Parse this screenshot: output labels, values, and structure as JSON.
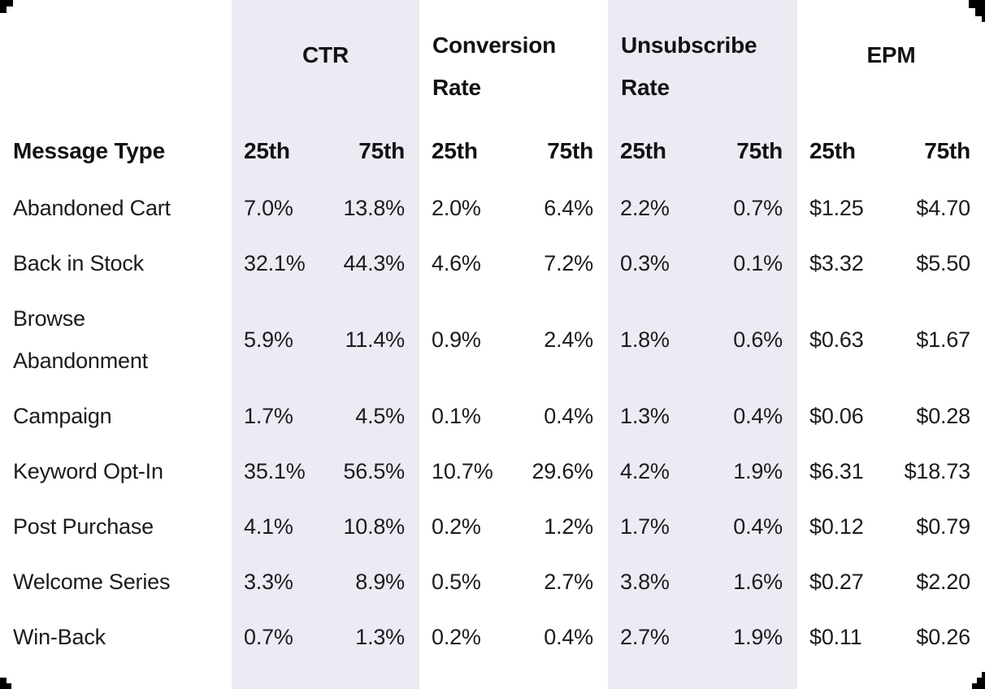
{
  "table": {
    "row_header_label": "Message Type",
    "percentile_labels": {
      "p25": "25th",
      "p75": "75th"
    },
    "groups": [
      {
        "label": "CTR",
        "shaded": true
      },
      {
        "label": "Conversion Rate",
        "shaded": false
      },
      {
        "label": "Unsubscribe Rate",
        "shaded": true
      },
      {
        "label": "EPM",
        "shaded": false
      }
    ],
    "rows": [
      {
        "label": "Abandoned Cart",
        "values": [
          "7.0%",
          "13.8%",
          "2.0%",
          "6.4%",
          "2.2%",
          "0.7%",
          "$1.25",
          "$4.70"
        ]
      },
      {
        "label": "Back in Stock",
        "values": [
          "32.1%",
          "44.3%",
          "4.6%",
          "7.2%",
          "0.3%",
          "0.1%",
          "$3.32",
          "$5.50"
        ]
      },
      {
        "label": "Browse Abandonment",
        "values": [
          "5.9%",
          "11.4%",
          "0.9%",
          "2.4%",
          "1.8%",
          "0.6%",
          "$0.63",
          "$1.67"
        ]
      },
      {
        "label": "Campaign",
        "values": [
          "1.7%",
          "4.5%",
          "0.1%",
          "0.4%",
          "1.3%",
          "0.4%",
          "$0.06",
          "$0.28"
        ]
      },
      {
        "label": "Keyword Opt-In",
        "values": [
          "35.1%",
          "56.5%",
          "10.7%",
          "29.6%",
          "4.2%",
          "1.9%",
          "$6.31",
          "$18.73"
        ]
      },
      {
        "label": "Post Purchase",
        "values": [
          "4.1%",
          "10.8%",
          "0.2%",
          "1.2%",
          "1.7%",
          "0.4%",
          "$0.12",
          "$0.79"
        ]
      },
      {
        "label": "Welcome Series",
        "values": [
          "3.3%",
          "8.9%",
          "0.5%",
          "2.7%",
          "3.8%",
          "1.6%",
          "$0.27",
          "$2.20"
        ]
      },
      {
        "label": "Win-Back",
        "values": [
          "0.7%",
          "1.3%",
          "0.2%",
          "0.4%",
          "2.7%",
          "1.9%",
          "$0.11",
          "$0.26"
        ]
      }
    ]
  },
  "colors": {
    "band_background": "#ECEBF3",
    "page_background": "#FFFFFF",
    "text": "#1B1B20",
    "corner_artifact": "#000000"
  },
  "chart_data": {
    "type": "table",
    "column_groups": [
      "CTR",
      "Conversion Rate",
      "Unsubscribe Rate",
      "EPM"
    ],
    "columns": [
      "Message Type",
      "CTR 25th",
      "CTR 75th",
      "Conversion Rate 25th",
      "Conversion Rate 75th",
      "Unsubscribe Rate 25th",
      "Unsubscribe Rate 75th",
      "EPM 25th",
      "EPM 75th"
    ],
    "rows": [
      [
        "Abandoned Cart",
        "7.0%",
        "13.8%",
        "2.0%",
        "6.4%",
        "2.2%",
        "0.7%",
        "$1.25",
        "$4.70"
      ],
      [
        "Back in Stock",
        "32.1%",
        "44.3%",
        "4.6%",
        "7.2%",
        "0.3%",
        "0.1%",
        "$3.32",
        "$5.50"
      ],
      [
        "Browse Abandonment",
        "5.9%",
        "11.4%",
        "0.9%",
        "2.4%",
        "1.8%",
        "0.6%",
        "$0.63",
        "$1.67"
      ],
      [
        "Campaign",
        "1.7%",
        "4.5%",
        "0.1%",
        "0.4%",
        "1.3%",
        "0.4%",
        "$0.06",
        "$0.28"
      ],
      [
        "Keyword Opt-In",
        "35.1%",
        "56.5%",
        "10.7%",
        "29.6%",
        "4.2%",
        "1.9%",
        "$6.31",
        "$18.73"
      ],
      [
        "Post Purchase",
        "4.1%",
        "10.8%",
        "0.2%",
        "1.2%",
        "1.7%",
        "0.4%",
        "$0.12",
        "$0.79"
      ],
      [
        "Welcome Series",
        "3.3%",
        "8.9%",
        "0.5%",
        "2.7%",
        "3.8%",
        "1.6%",
        "$0.27",
        "$2.20"
      ],
      [
        "Win-Back",
        "0.7%",
        "1.3%",
        "0.2%",
        "0.4%",
        "2.7%",
        "1.9%",
        "$0.11",
        "$0.26"
      ]
    ],
    "legend_position": "none",
    "grid": false
  }
}
